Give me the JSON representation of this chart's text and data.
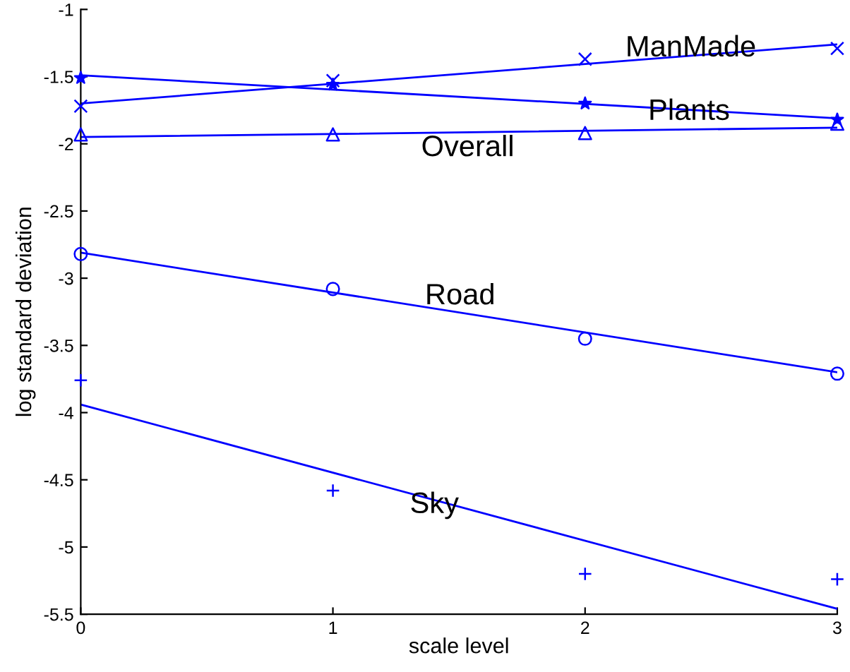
{
  "chart_data": {
    "type": "scatter",
    "xlabel": "scale level",
    "ylabel": "log standard deviation",
    "xlim": [
      0,
      3
    ],
    "ylim": [
      -5.5,
      -1
    ],
    "xticks": [
      0,
      1,
      2,
      3
    ],
    "yticks": [
      -5.5,
      -5,
      -4.5,
      -4,
      -3.5,
      -3,
      -2.5,
      -2,
      -1.5,
      -1
    ],
    "grid": false,
    "legend": false,
    "series": [
      {
        "marker": "cross",
        "color": "#0000ff",
        "x": [
          0,
          1,
          2,
          3
        ],
        "values": [
          -1.72,
          -1.53,
          -1.37,
          -1.29
        ]
      },
      {
        "type": "line",
        "marker": "none",
        "color": "#0000ff",
        "x": [
          0,
          3
        ],
        "values": [
          -1.7,
          -1.26
        ]
      },
      {
        "marker": "star",
        "color": "#0000ff",
        "x": [
          0,
          1,
          2,
          3
        ],
        "values": [
          -1.51,
          -1.56,
          -1.7,
          -1.82
        ]
      },
      {
        "type": "line",
        "marker": "none",
        "color": "#0000ff",
        "x": [
          0,
          3
        ],
        "values": [
          -1.49,
          -1.81
        ]
      },
      {
        "marker": "triangle",
        "color": "#0000ff",
        "x": [
          0,
          1,
          2,
          3
        ],
        "values": [
          -1.93,
          -1.93,
          -1.92,
          -1.85
        ]
      },
      {
        "type": "line",
        "marker": "none",
        "color": "#0000ff",
        "x": [
          0,
          3
        ],
        "values": [
          -1.95,
          -1.88
        ]
      },
      {
        "marker": "circle",
        "color": "#0000ff",
        "x": [
          0,
          1,
          2,
          3
        ],
        "values": [
          -2.82,
          -3.08,
          -3.45,
          -3.71
        ]
      },
      {
        "type": "line",
        "marker": "none",
        "color": "#0000ff",
        "x": [
          0,
          3
        ],
        "values": [
          -2.81,
          -3.7
        ]
      },
      {
        "marker": "plus",
        "color": "#0000ff",
        "x": [
          0,
          1,
          2,
          3
        ],
        "values": [
          -3.76,
          -4.58,
          -5.2,
          -5.24
        ]
      },
      {
        "type": "line",
        "marker": "none",
        "color": "#0000ff",
        "x": [
          0,
          3
        ],
        "values": [
          -3.94,
          -5.46
        ]
      }
    ],
    "annotations": [
      "ManMade",
      "Plants",
      "Overall",
      "Road",
      "Sky"
    ]
  }
}
